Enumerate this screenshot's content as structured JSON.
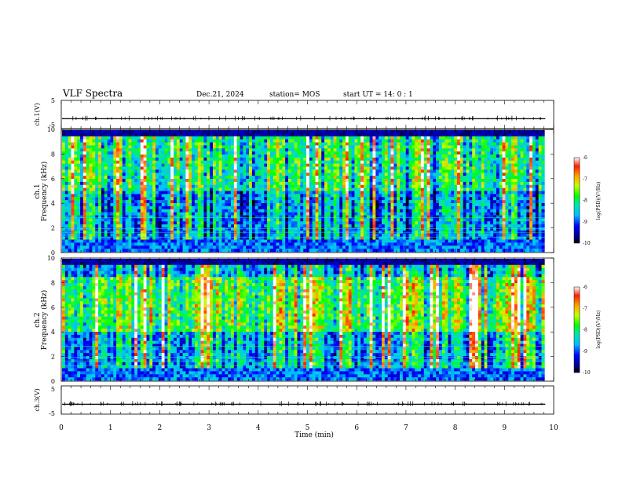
{
  "header": {
    "title": "VLF Spectra",
    "date": "Dec.21, 2024",
    "station": "station= MOS",
    "start": "start  UT =   14: 0  : 1"
  },
  "chart_data": [
    {
      "type": "line",
      "ylabel": "ch.1(V)",
      "ylim": [
        -5,
        5
      ],
      "yticks": [
        "5",
        "-5"
      ],
      "baseline": -1.5
    },
    {
      "type": "heatmap",
      "ylabel": "ch.1\nFrequency (kHz)",
      "ylim": [
        0,
        10
      ],
      "yticks": [
        "0",
        "2",
        "4",
        "6",
        "8",
        "10"
      ],
      "colorbar": {
        "label": "log(PSD)(V²/Hz)",
        "ticks": [
          "-6",
          "-7",
          "-8",
          "-9",
          "-10"
        ],
        "range": [
          -10,
          -6
        ]
      }
    },
    {
      "type": "heatmap",
      "ylabel": "ch.2\nFrequency (kHz)",
      "ylim": [
        0,
        10
      ],
      "yticks": [
        "0",
        "2",
        "4",
        "6",
        "8",
        "10"
      ],
      "colorbar": {
        "label": "log(PSD)(V²/Hz)",
        "ticks": [
          "-6",
          "-7",
          "-8",
          "-9",
          "-10"
        ],
        "range": [
          -10,
          -6
        ]
      }
    },
    {
      "type": "line",
      "ylabel": "ch.3(V)",
      "ylim": [
        -5,
        5
      ],
      "yticks": [
        "5",
        "-5"
      ],
      "baseline": -1.5
    }
  ],
  "x_axis": {
    "label": "Time  (min)",
    "range": [
      0,
      10
    ],
    "ticks": [
      "0",
      "1",
      "2",
      "3",
      "4",
      "5",
      "6",
      "7",
      "8",
      "9",
      "10"
    ],
    "data_end": 9.83
  }
}
